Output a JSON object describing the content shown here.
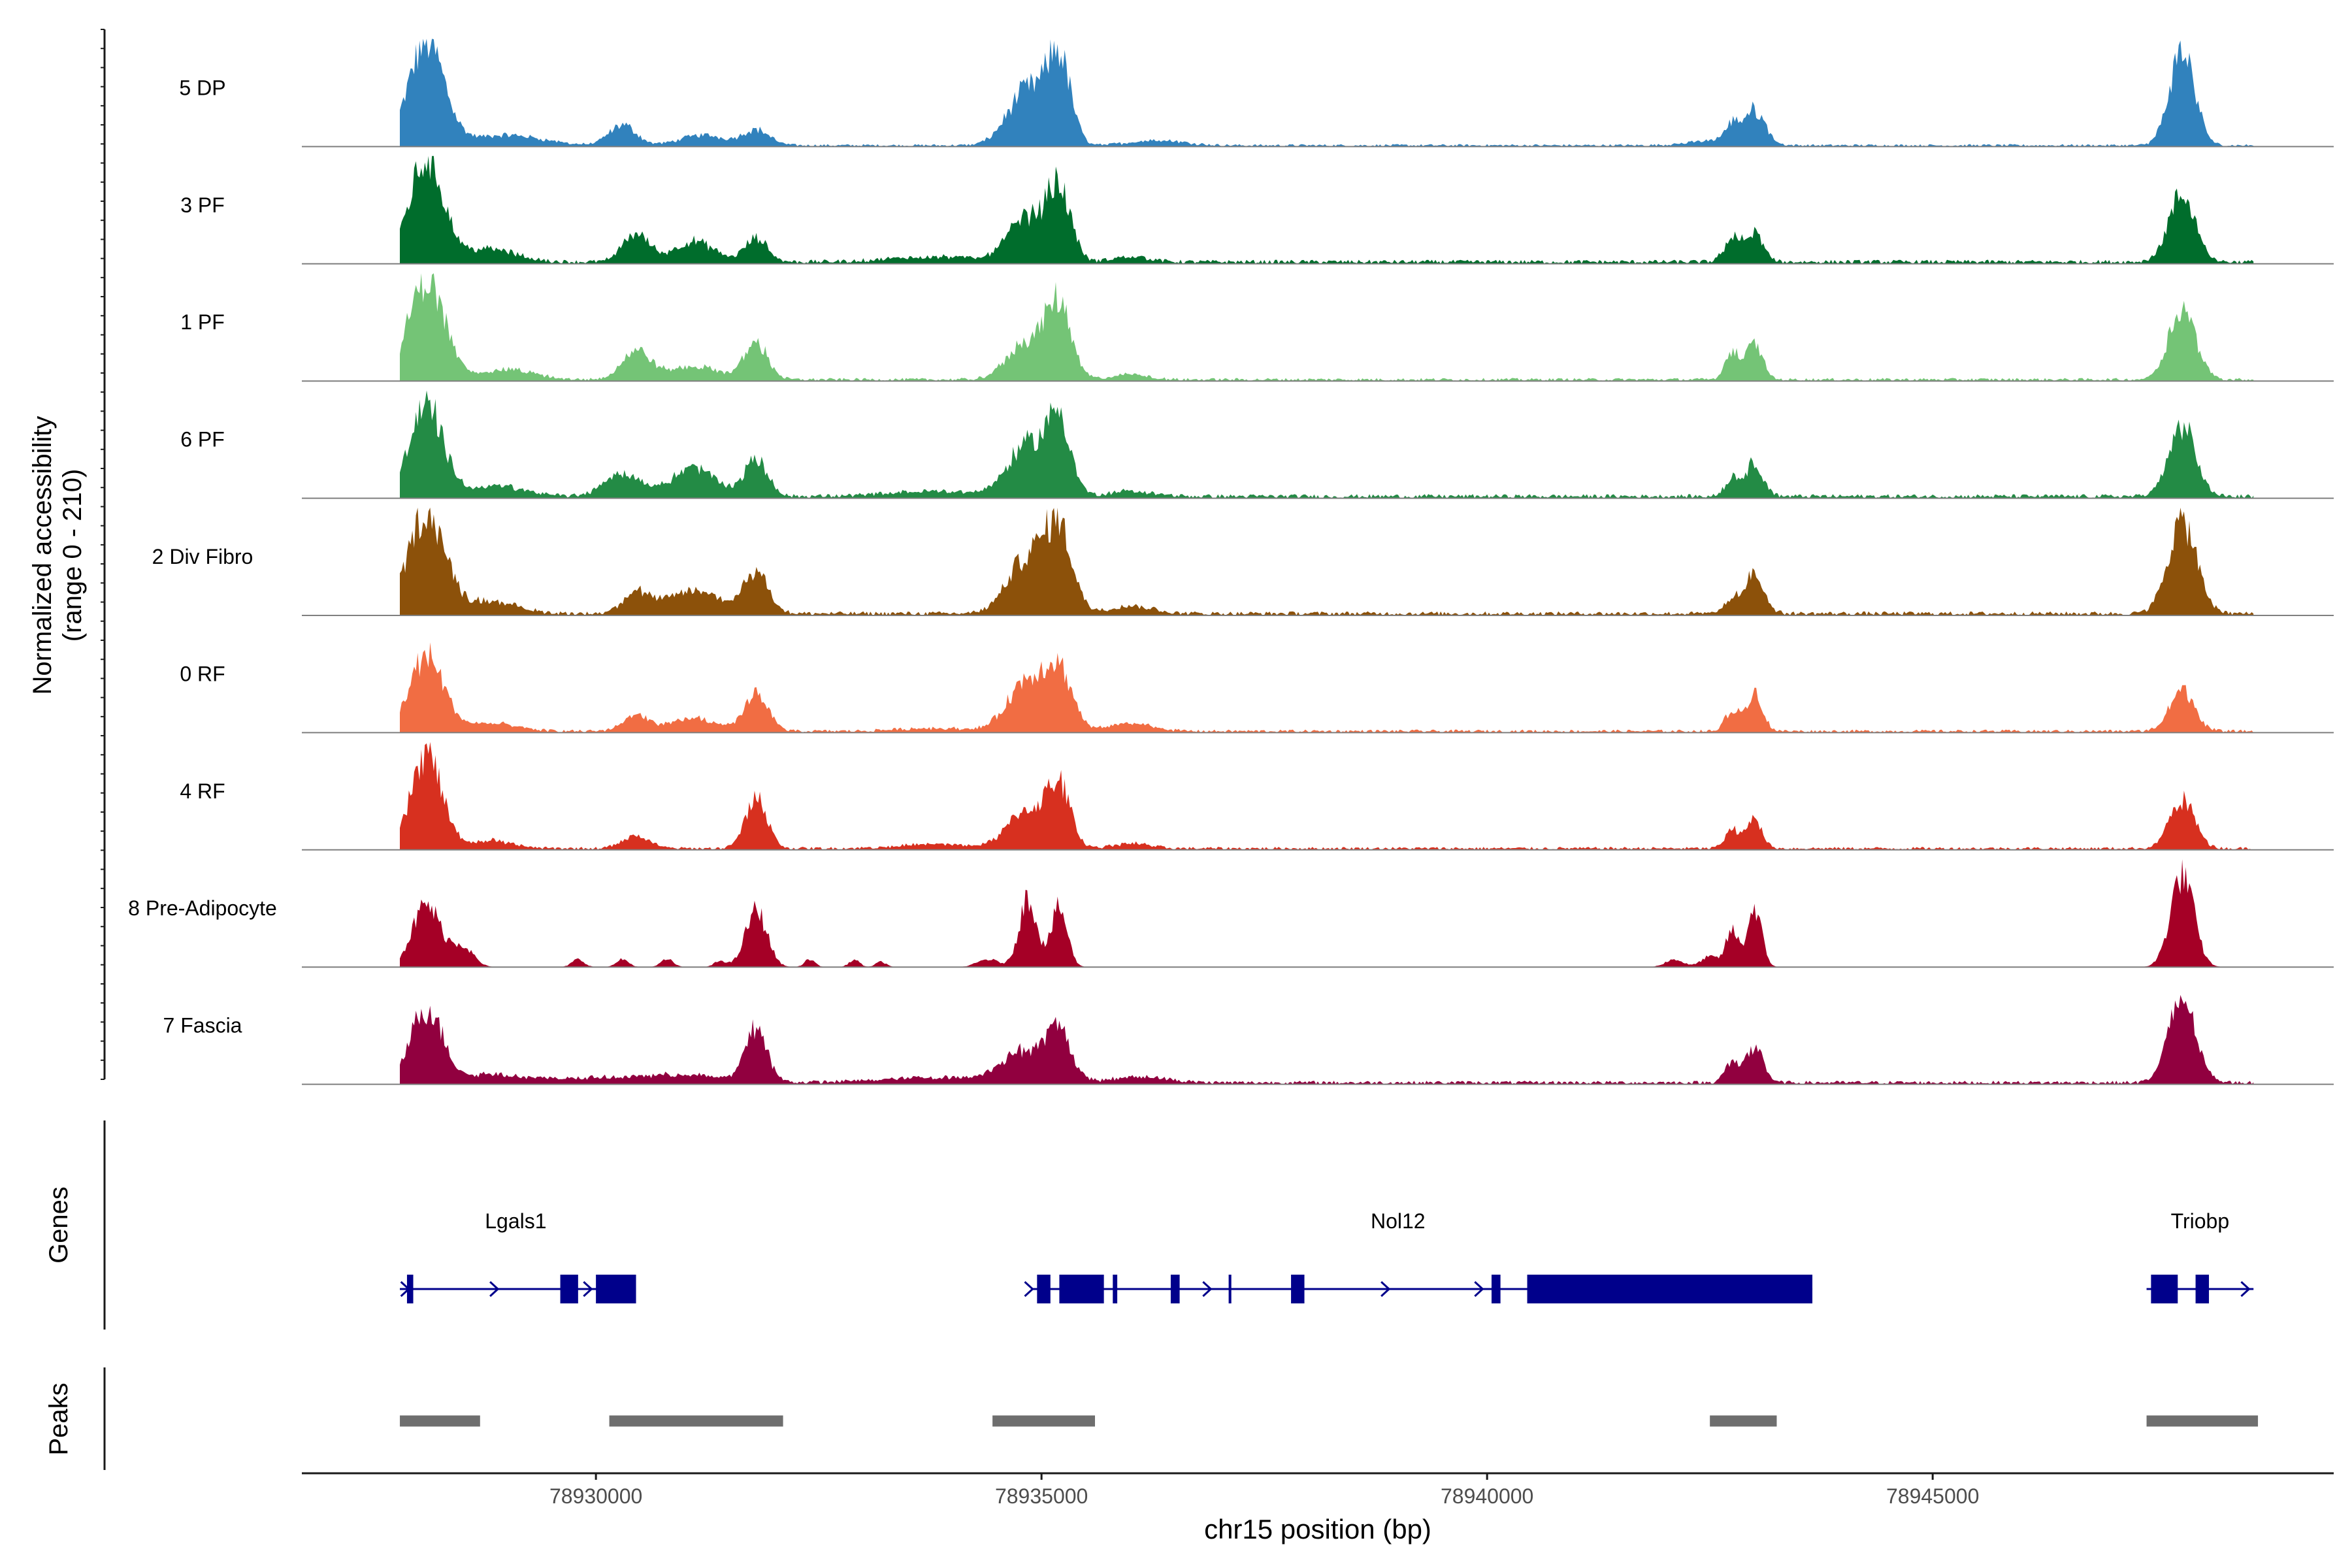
{
  "colors": {
    "axis": "#1a1a1a",
    "baseline": "#7f7f7f",
    "gene": "#00008b",
    "peak": "#6e6e6e",
    "tick_text": "#4d4d4d"
  },
  "chart_data": {
    "type": "area",
    "title": "",
    "ylabel": "Normalized accessibility\n(range 0 - 210)",
    "ylabel_lines": [
      "Normalized accessibility",
      "(range 0 - 210)"
    ],
    "xlabel": "chr15 position (bp)",
    "xlim": [
      78926700,
      78949500
    ],
    "ylim": [
      0,
      210
    ],
    "track_labels": {
      "genes": "Genes",
      "peaks": "Peaks"
    },
    "x_ticks": [
      {
        "value": 78930000,
        "label": "78930000"
      },
      {
        "value": 78935000,
        "label": "78935000"
      },
      {
        "value": 78940000,
        "label": "78940000"
      },
      {
        "value": 78945000,
        "label": "78945000"
      }
    ],
    "signal_range": [
      78927800,
      78948600
    ],
    "series": [
      {
        "name": "5 DP",
        "color": "#3182bd",
        "peaks": [
          [
            78928100,
            200,
            200
          ],
          [
            78929000,
            20,
            400
          ],
          [
            78930300,
            40,
            150
          ],
          [
            78931200,
            20,
            250
          ],
          [
            78931800,
            30,
            150
          ],
          [
            78934850,
            110,
            220
          ],
          [
            78935200,
            155,
            130
          ],
          [
            78936300,
            10,
            300
          ],
          [
            78942600,
            10,
            300
          ],
          [
            78942750,
            30,
            80
          ],
          [
            78943000,
            65,
            120
          ],
          [
            78947800,
            185,
            140
          ]
        ],
        "noise": 5
      },
      {
        "name": "3 PF",
        "color": "#006d2c",
        "peaks": [
          [
            78928100,
            200,
            190
          ],
          [
            78928800,
            25,
            300
          ],
          [
            78930450,
            55,
            150
          ],
          [
            78931100,
            40,
            220
          ],
          [
            78931800,
            45,
            130
          ],
          [
            78933800,
            10,
            500
          ],
          [
            78934850,
            85,
            220
          ],
          [
            78935200,
            130,
            130
          ],
          [
            78936000,
            10,
            200
          ],
          [
            78942750,
            45,
            90
          ],
          [
            78943000,
            55,
            100
          ],
          [
            78947800,
            130,
            150
          ]
        ],
        "noise": 8
      },
      {
        "name": "1 PF",
        "color": "#74c476",
        "peaks": [
          [
            78928100,
            195,
            200
          ],
          [
            78929000,
            20,
            300
          ],
          [
            78930450,
            55,
            160
          ],
          [
            78931100,
            25,
            300
          ],
          [
            78931800,
            70,
            130
          ],
          [
            78934850,
            75,
            220
          ],
          [
            78935200,
            135,
            140
          ],
          [
            78936000,
            10,
            200
          ],
          [
            78942750,
            55,
            80
          ],
          [
            78943000,
            70,
            90
          ],
          [
            78947800,
            140,
            150
          ]
        ],
        "noise": 6
      },
      {
        "name": "6 PF",
        "color": "#238b45",
        "peaks": [
          [
            78928100,
            175,
            190
          ],
          [
            78928900,
            20,
            300
          ],
          [
            78930300,
            45,
            200
          ],
          [
            78931100,
            55,
            250
          ],
          [
            78931800,
            70,
            130
          ],
          [
            78933800,
            10,
            500
          ],
          [
            78934850,
            100,
            220
          ],
          [
            78935200,
            140,
            130
          ],
          [
            78936000,
            10,
            250
          ],
          [
            78942750,
            35,
            80
          ],
          [
            78943000,
            65,
            100
          ],
          [
            78947800,
            135,
            150
          ]
        ],
        "noise": 8
      },
      {
        "name": "2 Div Fibro",
        "color": "#8c510a",
        "peaks": [
          [
            78928100,
            200,
            200
          ],
          [
            78928800,
            25,
            300
          ],
          [
            78930450,
            40,
            150
          ],
          [
            78931100,
            45,
            300
          ],
          [
            78931800,
            80,
            140
          ],
          [
            78934850,
            110,
            220
          ],
          [
            78935200,
            150,
            150
          ],
          [
            78936000,
            15,
            250
          ],
          [
            78942750,
            25,
            80
          ],
          [
            78943000,
            75,
            110
          ],
          [
            78947800,
            180,
            160
          ]
        ],
        "noise": 8
      },
      {
        "name": "0 RF",
        "color": "#f16d43",
        "peaks": [
          [
            78928100,
            145,
            190
          ],
          [
            78928800,
            15,
            300
          ],
          [
            78930450,
            30,
            150
          ],
          [
            78931100,
            25,
            250
          ],
          [
            78931800,
            75,
            130
          ],
          [
            78933800,
            6,
            400
          ],
          [
            78934850,
            100,
            220
          ],
          [
            78935200,
            105,
            150
          ],
          [
            78936000,
            15,
            250
          ],
          [
            78942750,
            40,
            80
          ],
          [
            78943000,
            75,
            90
          ],
          [
            78947800,
            80,
            140
          ]
        ],
        "noise": 6
      },
      {
        "name": "4 RF",
        "color": "#d7301f",
        "peaks": [
          [
            78928100,
            185,
            170
          ],
          [
            78928800,
            15,
            250
          ],
          [
            78930450,
            25,
            150
          ],
          [
            78931800,
            100,
            120
          ],
          [
            78933800,
            8,
            400
          ],
          [
            78934850,
            75,
            220
          ],
          [
            78935200,
            110,
            130
          ],
          [
            78936000,
            10,
            200
          ],
          [
            78942750,
            35,
            80
          ],
          [
            78943000,
            55,
            90
          ],
          [
            78947800,
            95,
            140
          ]
        ],
        "noise": 6
      },
      {
        "name": "8 Pre-Adipocyte",
        "color": "#a50026",
        "peaks": [
          [
            78928100,
            120,
            160
          ],
          [
            78928500,
            40,
            120
          ],
          [
            78929800,
            15,
            70
          ],
          [
            78930300,
            15,
            70
          ],
          [
            78930800,
            15,
            70
          ],
          [
            78931400,
            12,
            70
          ],
          [
            78931800,
            110,
            120
          ],
          [
            78932400,
            15,
            60
          ],
          [
            78932900,
            14,
            60
          ],
          [
            78933200,
            10,
            60
          ],
          [
            78934400,
            15,
            120
          ],
          [
            78934850,
            135,
            100
          ],
          [
            78935200,
            115,
            90
          ],
          [
            78942100,
            15,
            100
          ],
          [
            78942500,
            20,
            100
          ],
          [
            78942750,
            70,
            70
          ],
          [
            78943000,
            115,
            80
          ],
          [
            78947800,
            180,
            130
          ]
        ],
        "noise": 0
      },
      {
        "name": "7 Fascia",
        "color": "#91003f",
        "peaks": [
          [
            78928100,
            145,
            180
          ],
          [
            78928800,
            15,
            300
          ],
          [
            78929800,
            8,
            600
          ],
          [
            78931000,
            14,
            500
          ],
          [
            78931800,
            105,
            120
          ],
          [
            78933800,
            10,
            600
          ],
          [
            78934800,
            60,
            250
          ],
          [
            78935200,
            90,
            140
          ],
          [
            78936100,
            12,
            300
          ],
          [
            78942750,
            40,
            80
          ],
          [
            78943000,
            65,
            100
          ],
          [
            78947800,
            165,
            150
          ]
        ],
        "noise": 7
      }
    ],
    "genes": [
      {
        "name": "Lgals1",
        "start": 78927800,
        "end": 78930450,
        "label_pos": 78929100,
        "exons": [
          [
            78927880,
            78927950
          ],
          [
            78929600,
            78929800
          ],
          [
            78930000,
            78930450
          ]
        ],
        "arrows": [
          78927900,
          78928900,
          78929950
        ]
      },
      {
        "name": "Nol12",
        "start": 78934900,
        "end": 78943650,
        "label_pos": 78939000,
        "exons": [
          [
            78934950,
            78935100
          ],
          [
            78935200,
            78935700
          ],
          [
            78935800,
            78935850
          ],
          [
            78936450,
            78936550
          ],
          [
            78937100,
            78937130
          ],
          [
            78937800,
            78937950
          ],
          [
            78940050,
            78940150
          ],
          [
            78940450,
            78943650
          ]
        ],
        "arrows": [
          78934900,
          78936900,
          78938900,
          78939950
        ]
      },
      {
        "name": "Triobp",
        "start": 78947400,
        "end": 78948600,
        "label_pos": 78948000,
        "exons": [
          [
            78947450,
            78947750
          ],
          [
            78947950,
            78948100
          ]
        ],
        "arrows": [
          78948550
        ]
      }
    ],
    "peak_regions": [
      [
        78927800,
        78928700
      ],
      [
        78930150,
        78932100
      ],
      [
        78934450,
        78935600
      ],
      [
        78942500,
        78943250
      ],
      [
        78947400,
        78948650
      ]
    ]
  }
}
